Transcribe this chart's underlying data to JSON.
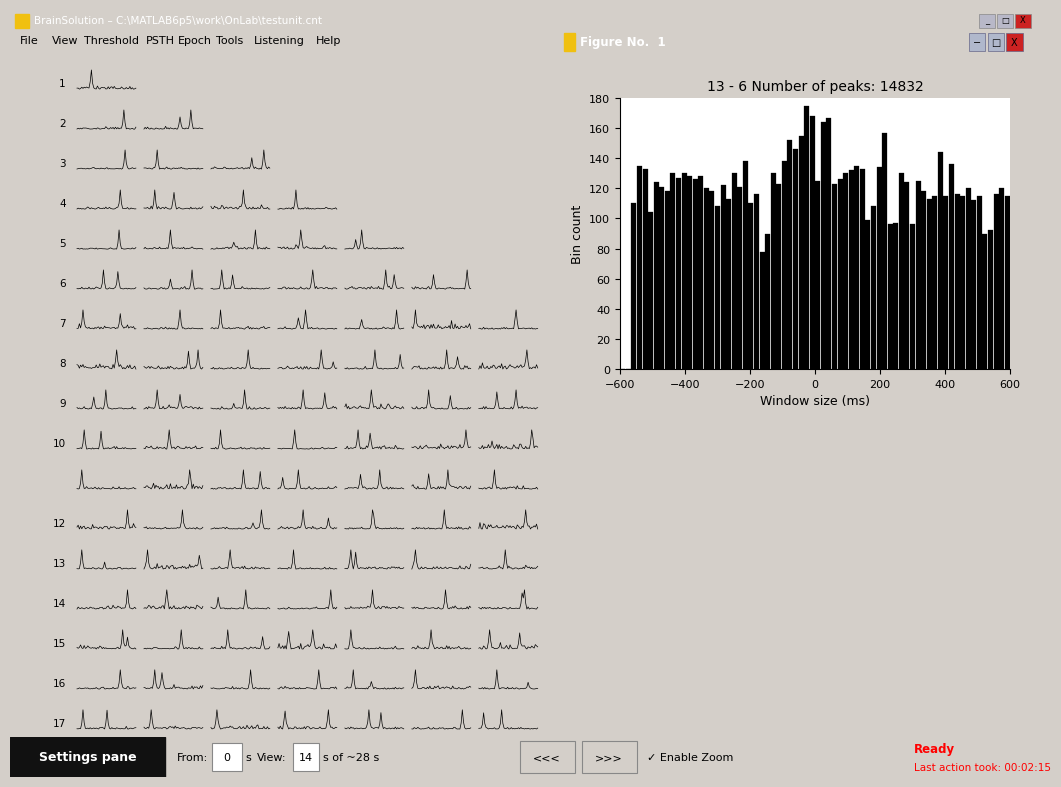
{
  "title": "BrainSolution – C:\\MATLAB6p5\\work\\OnLab\\testunit.cnt",
  "menu_items": [
    "File",
    "View",
    "Threshold",
    "PSTH",
    "Epoch",
    "Tools",
    "Listening",
    "Help"
  ],
  "figure_title": "13 - 6 Number of peaks: 14832",
  "xlabel": "Window size (ms)",
  "ylabel": "Bin count",
  "xlim": [
    -600,
    600
  ],
  "ylim": [
    0,
    180
  ],
  "yticks": [
    0,
    20,
    40,
    60,
    80,
    100,
    120,
    140,
    160,
    180
  ],
  "xticks": [
    -600,
    -400,
    -200,
    0,
    200,
    400,
    600
  ],
  "num_rows": 17,
  "bg_color": "#d4cfc9",
  "titlebar_color": "#1a4a9e",
  "fig_titlebar_color": "#1a5abf",
  "statusbar_bg": "#c8c4b8",
  "settings_pane_text": "Settings pane",
  "from_val": "0",
  "view_val": "14",
  "view_suffix": "s of ~28 s",
  "status_text": "Ready",
  "status_text2": "Last action took: 00:02:15",
  "enable_zoom_text": "✓ Enable Zoom",
  "nav_left": "<<<",
  "nav_right": ">>>",
  "row_label_display": [
    "1",
    "2",
    "3",
    "4",
    "5",
    "6",
    "7",
    "8",
    "9",
    "10",
    "",
    "12",
    "13",
    "14",
    "15",
    "16",
    "17"
  ],
  "max_cols_per_row": [
    1,
    2,
    3,
    4,
    5,
    6,
    7,
    8,
    9,
    10,
    10,
    10,
    10,
    10,
    10,
    10,
    10
  ],
  "hist_heights": [
    0,
    0,
    110,
    135,
    133,
    104,
    124,
    121,
    118,
    130,
    127,
    130,
    128,
    126,
    128,
    120,
    118,
    108,
    122,
    113,
    130,
    121,
    138,
    110,
    116,
    78,
    90,
    130,
    123,
    138,
    152,
    146,
    155,
    175,
    168,
    125,
    164,
    167,
    123,
    126,
    130,
    132,
    135,
    133,
    99,
    108,
    134,
    157,
    96,
    97,
    130,
    124,
    96,
    125,
    118,
    113,
    115,
    144,
    115,
    136,
    116,
    115,
    120,
    112,
    115,
    90,
    92,
    116,
    120,
    115
  ]
}
